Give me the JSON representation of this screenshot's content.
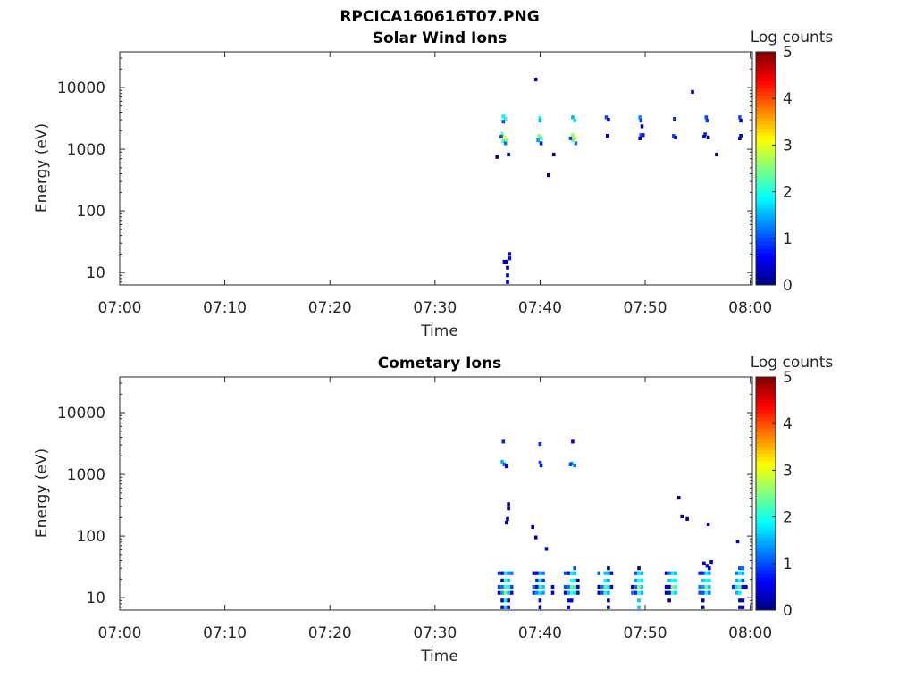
{
  "chart_data": [
    {
      "type": "heatmap",
      "file_title": "RPCICA160616T07.PNG",
      "title": "Solar Wind Ions",
      "xlabel": "Time",
      "ylabel": "Energy (eV)",
      "xticks": [
        "07:00",
        "07:10",
        "07:20",
        "07:30",
        "07:40",
        "07:50",
        "08:00"
      ],
      "xtick_minutes": [
        0,
        10,
        20,
        30,
        40,
        50,
        60
      ],
      "xlim_minutes": [
        0,
        60.2
      ],
      "yscale": "log",
      "yticks": [
        "10",
        "100",
        "1000",
        "10000"
      ],
      "ytick_values": [
        10,
        100,
        1000,
        10000
      ],
      "ylim": [
        6.3,
        38000
      ],
      "colorbar": {
        "label": "Log counts",
        "ticks": [
          "0",
          "1",
          "2",
          "3",
          "4",
          "5"
        ],
        "range": [
          0,
          5
        ],
        "colormap": "jet"
      },
      "cell_format": "[minute_after_07:00, energy_eV, log_counts]",
      "cells": [
        [
          36.5,
          3400,
          1.8
        ],
        [
          36.7,
          3100,
          2.0
        ],
        [
          36.5,
          2800,
          1.0
        ],
        [
          36.4,
          1750,
          2.4
        ],
        [
          36.6,
          1550,
          3.0
        ],
        [
          36.8,
          1450,
          2.6
        ],
        [
          36.5,
          1350,
          2.2
        ],
        [
          36.7,
          1250,
          1.2
        ],
        [
          36.3,
          1600,
          1.0
        ],
        [
          36.8,
          15,
          0.1
        ],
        [
          36.6,
          15,
          0.1
        ],
        [
          36.9,
          12,
          0.2
        ],
        [
          36.9,
          9,
          0.2
        ],
        [
          36.9,
          7,
          0.4
        ],
        [
          37.1,
          20,
          0.6
        ],
        [
          37.1,
          17,
          0.5
        ],
        [
          39.6,
          13500,
          0.3
        ],
        [
          35.9,
          750,
          0.2
        ],
        [
          37.0,
          820,
          0.2
        ],
        [
          40.8,
          380,
          0.3
        ],
        [
          41.3,
          820,
          0.2
        ],
        [
          54.5,
          8500,
          0.3
        ],
        [
          56.8,
          820,
          0.2
        ],
        [
          40.0,
          3200,
          1.8
        ],
        [
          40.0,
          2900,
          1.5
        ],
        [
          39.9,
          1650,
          2.6
        ],
        [
          40.1,
          1500,
          2.2
        ],
        [
          39.8,
          1400,
          1.4
        ],
        [
          40.1,
          1250,
          0.8
        ],
        [
          43.1,
          3300,
          1.5
        ],
        [
          43.3,
          2900,
          1.8
        ],
        [
          43.1,
          1700,
          2.6
        ],
        [
          43.3,
          1500,
          3.0
        ],
        [
          43.1,
          1400,
          2.4
        ],
        [
          43.4,
          1250,
          1.2
        ],
        [
          42.9,
          1500,
          1.0
        ],
        [
          46.3,
          3300,
          1.0
        ],
        [
          46.5,
          3000,
          0.4
        ],
        [
          46.4,
          1650,
          0.3
        ],
        [
          49.5,
          3300,
          1.3
        ],
        [
          49.6,
          2900,
          1.0
        ],
        [
          49.7,
          2350,
          0.2
        ],
        [
          49.6,
          1700,
          1.0
        ],
        [
          49.5,
          1500,
          0.5
        ],
        [
          49.8,
          1700,
          0.7
        ],
        [
          52.8,
          3100,
          0.8
        ],
        [
          52.7,
          1650,
          1.0
        ],
        [
          52.9,
          1550,
          0.5
        ],
        [
          55.8,
          3300,
          1.0
        ],
        [
          55.9,
          2900,
          0.9
        ],
        [
          55.7,
          1750,
          0.8
        ],
        [
          56.0,
          1550,
          0.2
        ],
        [
          55.6,
          1600,
          0.3
        ],
        [
          59.0,
          3300,
          1.0
        ],
        [
          59.1,
          2900,
          0.5
        ],
        [
          59.1,
          1650,
          0.5
        ],
        [
          59.0,
          1500,
          0.3
        ]
      ]
    },
    {
      "type": "heatmap",
      "title": "Cometary Ions",
      "xlabel": "Time",
      "ylabel": "Energy (eV)",
      "xticks": [
        "07:00",
        "07:10",
        "07:20",
        "07:30",
        "07:40",
        "07:50",
        "08:00"
      ],
      "xtick_minutes": [
        0,
        10,
        20,
        30,
        40,
        50,
        60
      ],
      "xlim_minutes": [
        0,
        60.2
      ],
      "yscale": "log",
      "yticks": [
        "10",
        "100",
        "1000",
        "10000"
      ],
      "ytick_values": [
        10,
        100,
        1000,
        10000
      ],
      "ylim": [
        6.3,
        38000
      ],
      "colorbar": {
        "label": "Log counts",
        "ticks": [
          "0",
          "1",
          "2",
          "3",
          "4",
          "5"
        ],
        "range": [
          0,
          5
        ],
        "colormap": "jet"
      },
      "cell_format": "[minute_after_07:00, energy_eV, log_counts]",
      "cells": [
        [
          36.5,
          3400,
          0.8
        ],
        [
          36.4,
          1600,
          1.5
        ],
        [
          36.6,
          1450,
          1.2
        ],
        [
          36.8,
          1350,
          0.6
        ],
        [
          37.0,
          330,
          0.2
        ],
        [
          37.0,
          280,
          0.2
        ],
        [
          36.9,
          190,
          0.3
        ],
        [
          36.8,
          165,
          0.2
        ],
        [
          40.0,
          3100,
          0.8
        ],
        [
          40.0,
          1550,
          1.0
        ],
        [
          40.1,
          1400,
          0.8
        ],
        [
          43.1,
          3400,
          0.6
        ],
        [
          43.0,
          1500,
          1.5
        ],
        [
          43.3,
          1400,
          1.2
        ],
        [
          42.9,
          1450,
          1.0
        ],
        [
          39.3,
          140,
          0.2
        ],
        [
          39.6,
          95,
          0.2
        ],
        [
          40.6,
          62,
          0.5
        ],
        [
          53.2,
          420,
          0.1
        ],
        [
          53.5,
          210,
          0.2
        ],
        [
          54.0,
          190,
          0.3
        ],
        [
          56.0,
          155,
          0.3
        ],
        [
          58.8,
          82,
          0.3
        ],
        [
          55.6,
          36,
          0.3
        ],
        [
          55.9,
          33,
          0.5
        ],
        [
          56.3,
          38,
          0.3
        ],
        [
          36.1,
          25,
          1.0
        ],
        [
          36.1,
          15,
          1.0
        ],
        [
          36.1,
          12,
          0.4
        ],
        [
          36.4,
          25,
          0.3
        ],
        [
          36.4,
          19,
          0.1
        ],
        [
          36.4,
          15,
          1.2
        ],
        [
          36.4,
          12,
          1.4
        ],
        [
          36.4,
          9,
          0.1
        ],
        [
          36.4,
          7,
          0.1
        ],
        [
          36.7,
          25,
          1.8
        ],
        [
          36.7,
          19,
          2.0
        ],
        [
          36.7,
          15,
          2.2
        ],
        [
          36.7,
          12,
          2.5
        ],
        [
          36.7,
          9,
          1.8
        ],
        [
          36.7,
          7,
          1.6
        ],
        [
          37.0,
          25,
          1.3
        ],
        [
          37.0,
          19,
          1.5
        ],
        [
          37.0,
          15,
          2.0
        ],
        [
          37.0,
          12,
          1.6
        ],
        [
          37.0,
          9,
          0.2
        ],
        [
          37.0,
          7,
          0.3
        ],
        [
          37.3,
          25,
          1.2
        ],
        [
          37.3,
          15,
          1.0
        ],
        [
          37.3,
          12,
          0.4
        ],
        [
          39.4,
          25,
          0.4
        ],
        [
          39.4,
          15,
          1.2
        ],
        [
          39.4,
          12,
          1.0
        ],
        [
          39.7,
          25,
          0.3
        ],
        [
          39.7,
          19,
          0.8
        ],
        [
          39.7,
          15,
          0.4
        ],
        [
          39.7,
          12,
          1.3
        ],
        [
          40.0,
          25,
          1.5
        ],
        [
          40.0,
          19,
          1.8
        ],
        [
          40.0,
          15,
          2.0
        ],
        [
          40.0,
          12,
          1.8
        ],
        [
          40.0,
          9,
          0.4
        ],
        [
          40.0,
          7,
          0.3
        ],
        [
          40.3,
          25,
          1.2
        ],
        [
          40.3,
          19,
          0.8
        ],
        [
          40.3,
          15,
          1.6
        ],
        [
          40.3,
          12,
          1.4
        ],
        [
          41.2,
          15,
          0.3
        ],
        [
          41.2,
          12,
          0.3
        ],
        [
          42.4,
          25,
          1.0
        ],
        [
          42.4,
          15,
          1.0
        ],
        [
          42.4,
          12,
          0.6
        ],
        [
          42.7,
          25,
          0.3
        ],
        [
          42.7,
          15,
          1.2
        ],
        [
          42.7,
          12,
          1.5
        ],
        [
          42.7,
          9,
          0.5
        ],
        [
          42.7,
          7,
          0.6
        ],
        [
          43.0,
          25,
          1.8
        ],
        [
          43.0,
          19,
          2.0
        ],
        [
          43.0,
          15,
          2.4
        ],
        [
          43.0,
          12,
          2.2
        ],
        [
          43.0,
          9,
          0.5
        ],
        [
          43.3,
          30,
          1.0
        ],
        [
          43.3,
          25,
          1.6
        ],
        [
          43.3,
          19,
          1.8
        ],
        [
          43.3,
          15,
          2.0
        ],
        [
          43.3,
          12,
          1.8
        ],
        [
          43.6,
          19,
          0.2
        ],
        [
          43.6,
          15,
          0.5
        ],
        [
          43.6,
          12,
          0.3
        ],
        [
          45.6,
          25,
          1.0
        ],
        [
          45.6,
          15,
          0.4
        ],
        [
          45.6,
          12,
          0.3
        ],
        [
          45.9,
          15,
          1.2
        ],
        [
          45.9,
          12,
          1.0
        ],
        [
          46.2,
          25,
          1.6
        ],
        [
          46.2,
          19,
          1.8
        ],
        [
          46.2,
          15,
          2.2
        ],
        [
          46.2,
          12,
          2.0
        ],
        [
          46.5,
          30,
          0.2
        ],
        [
          46.5,
          25,
          1.5
        ],
        [
          46.5,
          19,
          1.4
        ],
        [
          46.5,
          15,
          1.8
        ],
        [
          46.5,
          12,
          1.5
        ],
        [
          46.5,
          9,
          0.2
        ],
        [
          46.5,
          7,
          0.2
        ],
        [
          46.8,
          25,
          0.3
        ],
        [
          46.8,
          15,
          0.5
        ],
        [
          48.8,
          15,
          0.3
        ],
        [
          48.8,
          12,
          1.2
        ],
        [
          49.1,
          25,
          1.0
        ],
        [
          49.1,
          19,
          1.4
        ],
        [
          49.1,
          15,
          1.2
        ],
        [
          49.1,
          12,
          0.8
        ],
        [
          49.4,
          30,
          0.2
        ],
        [
          49.4,
          25,
          1.8
        ],
        [
          49.4,
          19,
          2.0
        ],
        [
          49.4,
          15,
          2.6
        ],
        [
          49.4,
          12,
          2.2
        ],
        [
          49.4,
          9,
          1.6
        ],
        [
          49.4,
          7,
          1.6
        ],
        [
          49.7,
          25,
          1.5
        ],
        [
          49.7,
          19,
          1.8
        ],
        [
          49.7,
          15,
          1.6
        ],
        [
          49.7,
          12,
          1.5
        ],
        [
          52.0,
          25,
          0.3
        ],
        [
          52.0,
          15,
          0.4
        ],
        [
          52.0,
          12,
          0.2
        ],
        [
          52.3,
          25,
          1.2
        ],
        [
          52.3,
          19,
          1.6
        ],
        [
          52.3,
          15,
          0.5
        ],
        [
          52.3,
          12,
          0.3
        ],
        [
          52.3,
          9,
          0.2
        ],
        [
          52.6,
          25,
          1.8
        ],
        [
          52.6,
          19,
          2.0
        ],
        [
          52.6,
          15,
          2.6
        ],
        [
          52.6,
          12,
          2.2
        ],
        [
          52.9,
          25,
          1.5
        ],
        [
          52.9,
          19,
          1.8
        ],
        [
          52.9,
          15,
          2.0
        ],
        [
          52.9,
          12,
          1.6
        ],
        [
          55.2,
          25,
          0.8
        ],
        [
          55.2,
          15,
          1.2
        ],
        [
          55.2,
          12,
          1.0
        ],
        [
          55.5,
          25,
          0.8
        ],
        [
          55.5,
          19,
          1.6
        ],
        [
          55.5,
          15,
          1.4
        ],
        [
          55.5,
          12,
          1.0
        ],
        [
          55.5,
          9,
          0.2
        ],
        [
          55.5,
          7,
          0.2
        ],
        [
          55.8,
          25,
          1.8
        ],
        [
          55.8,
          19,
          2.0
        ],
        [
          55.8,
          15,
          2.4
        ],
        [
          55.8,
          12,
          2.0
        ],
        [
          56.1,
          30,
          0.4
        ],
        [
          56.1,
          25,
          1.5
        ],
        [
          56.1,
          19,
          1.8
        ],
        [
          56.1,
          15,
          1.6
        ],
        [
          56.1,
          12,
          1.2
        ],
        [
          58.4,
          15,
          0.8
        ],
        [
          58.7,
          25,
          1.2
        ],
        [
          58.7,
          19,
          1.5
        ],
        [
          58.7,
          15,
          1.8
        ],
        [
          58.7,
          12,
          1.5
        ],
        [
          59.0,
          30,
          1.0
        ],
        [
          59.0,
          25,
          1.8
        ],
        [
          59.0,
          19,
          2.0
        ],
        [
          59.0,
          15,
          2.2
        ],
        [
          59.0,
          12,
          1.8
        ],
        [
          59.0,
          9,
          0.2
        ],
        [
          59.0,
          7,
          0.2
        ],
        [
          59.3,
          30,
          1.2
        ],
        [
          59.3,
          25,
          1.5
        ],
        [
          59.3,
          19,
          1.0
        ],
        [
          59.3,
          15,
          0.4
        ],
        [
          59.3,
          9,
          0.2
        ],
        [
          59.3,
          7,
          0.2
        ],
        [
          59.6,
          15,
          0.5
        ]
      ]
    }
  ]
}
